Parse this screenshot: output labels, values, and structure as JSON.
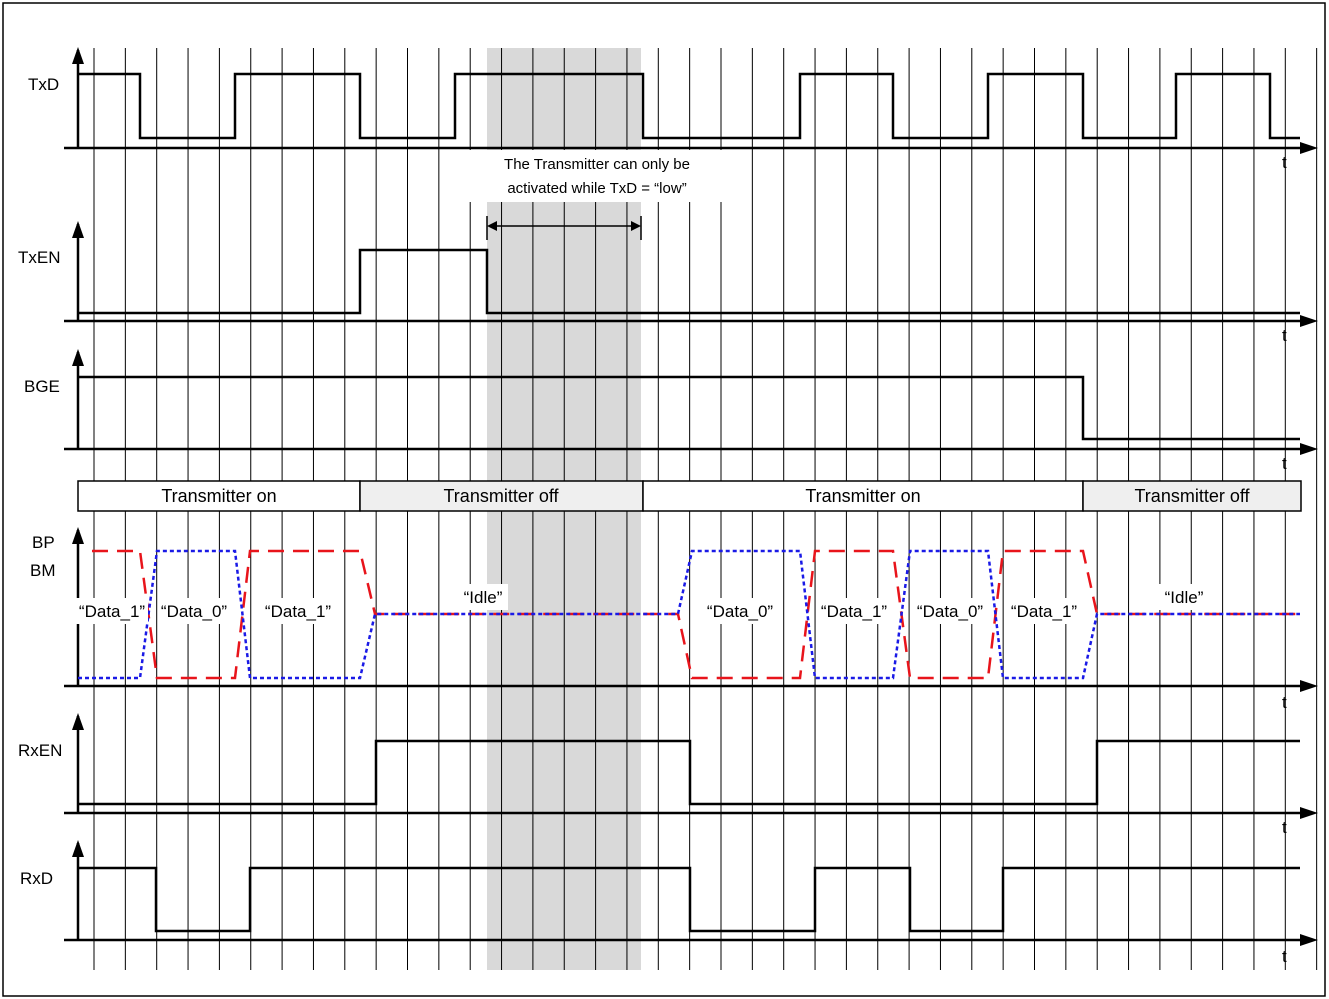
{
  "colors": {
    "bp": "#e8141b",
    "bm": "#1a1ae6",
    "shade": "#d9d9d9",
    "off_box": "#efefef"
  },
  "signals": {
    "txd": {
      "label": "TxD",
      "t": "t"
    },
    "txen": {
      "label": "TxEN",
      "t": "t"
    },
    "bge": {
      "label": "BGE",
      "t": "t"
    },
    "bus": {
      "bp_label": "BP",
      "bm_label": "BM",
      "t": "t"
    },
    "rxen": {
      "label": "RxEN",
      "t": "t"
    },
    "rxd": {
      "label": "RxD",
      "t": "t"
    }
  },
  "states": [
    {
      "text": "Transmitter on",
      "off": false
    },
    {
      "text": "Transmitter off",
      "off": true
    },
    {
      "text": "Transmitter on",
      "off": false
    },
    {
      "text": "Transmitter off",
      "off": true
    }
  ],
  "annotation": {
    "line1": "The Transmitter can only be",
    "line2": "activated while TxD = “low”"
  },
  "bus_labels": [
    "“Data_1”",
    "“Data_0”",
    "“Data_1”",
    "“Idle”",
    "“Data_0”",
    "“Data_1”",
    "“Data_0”",
    "“Data_1”",
    "“Idle”"
  ]
}
